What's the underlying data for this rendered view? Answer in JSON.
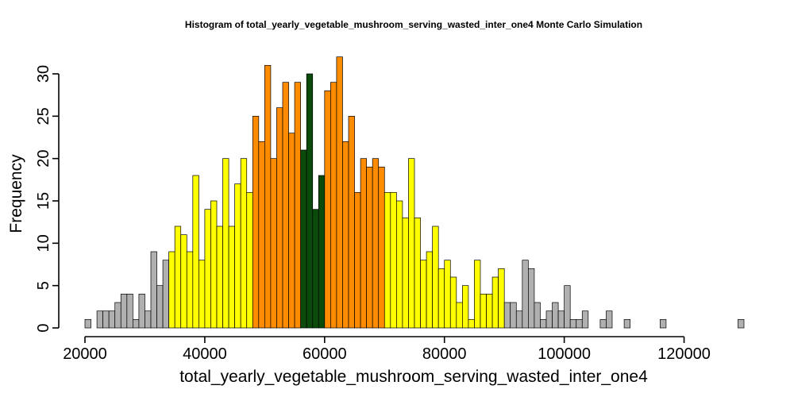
{
  "chart_data": {
    "type": "bar",
    "title": "Histogram of  total_yearly_vegetable_mushroom_serving_wasted_inter_one4  Monte Carlo Simulation",
    "xlabel": "total_yearly_vegetable_mushroom_serving_wasted_inter_one4",
    "ylabel": "Frequency",
    "xlim": [
      20000,
      130000
    ],
    "ylim": [
      0,
      32
    ],
    "bin_width": 1000,
    "x_ticks": [
      20000,
      40000,
      60000,
      80000,
      100000,
      120000
    ],
    "y_ticks": [
      0,
      5,
      10,
      15,
      20,
      25,
      30
    ],
    "grid": false,
    "legend": "none",
    "colors": {
      "tail": "#b0b0b0",
      "outer": "#ffff00",
      "inner": "#ff8c00",
      "center": "#0a4a0a",
      "outline": "#000000"
    },
    "bins": [
      {
        "x0": 20000,
        "x1": 21000,
        "count": 1,
        "group": "tail"
      },
      {
        "x0": 21000,
        "x1": 22000,
        "count": 0,
        "group": "tail"
      },
      {
        "x0": 22000,
        "x1": 23000,
        "count": 2,
        "group": "tail"
      },
      {
        "x0": 23000,
        "x1": 24000,
        "count": 2,
        "group": "tail"
      },
      {
        "x0": 24000,
        "x1": 25000,
        "count": 2,
        "group": "tail"
      },
      {
        "x0": 25000,
        "x1": 26000,
        "count": 3,
        "group": "tail"
      },
      {
        "x0": 26000,
        "x1": 27000,
        "count": 4,
        "group": "tail"
      },
      {
        "x0": 27000,
        "x1": 28000,
        "count": 4,
        "group": "tail"
      },
      {
        "x0": 28000,
        "x1": 29000,
        "count": 1,
        "group": "tail"
      },
      {
        "x0": 29000,
        "x1": 30000,
        "count": 4,
        "group": "tail"
      },
      {
        "x0": 30000,
        "x1": 31000,
        "count": 2,
        "group": "tail"
      },
      {
        "x0": 31000,
        "x1": 32000,
        "count": 9,
        "group": "tail"
      },
      {
        "x0": 32000,
        "x1": 33000,
        "count": 5,
        "group": "tail"
      },
      {
        "x0": 33000,
        "x1": 34000,
        "count": 8,
        "group": "tail"
      },
      {
        "x0": 34000,
        "x1": 35000,
        "count": 9,
        "group": "outer"
      },
      {
        "x0": 35000,
        "x1": 36000,
        "count": 12,
        "group": "outer"
      },
      {
        "x0": 36000,
        "x1": 37000,
        "count": 11,
        "group": "outer"
      },
      {
        "x0": 37000,
        "x1": 38000,
        "count": 9,
        "group": "outer"
      },
      {
        "x0": 38000,
        "x1": 39000,
        "count": 18,
        "group": "outer"
      },
      {
        "x0": 39000,
        "x1": 40000,
        "count": 8,
        "group": "outer"
      },
      {
        "x0": 40000,
        "x1": 41000,
        "count": 14,
        "group": "outer"
      },
      {
        "x0": 41000,
        "x1": 42000,
        "count": 15,
        "group": "outer"
      },
      {
        "x0": 42000,
        "x1": 43000,
        "count": 12,
        "group": "outer"
      },
      {
        "x0": 43000,
        "x1": 44000,
        "count": 20,
        "group": "outer"
      },
      {
        "x0": 44000,
        "x1": 45000,
        "count": 12,
        "group": "outer"
      },
      {
        "x0": 45000,
        "x1": 46000,
        "count": 17,
        "group": "outer"
      },
      {
        "x0": 46000,
        "x1": 47000,
        "count": 20,
        "group": "outer"
      },
      {
        "x0": 47000,
        "x1": 48000,
        "count": 16,
        "group": "outer"
      },
      {
        "x0": 48000,
        "x1": 49000,
        "count": 25,
        "group": "inner"
      },
      {
        "x0": 49000,
        "x1": 50000,
        "count": 22,
        "group": "inner"
      },
      {
        "x0": 50000,
        "x1": 51000,
        "count": 31,
        "group": "inner"
      },
      {
        "x0": 51000,
        "x1": 52000,
        "count": 20,
        "group": "inner"
      },
      {
        "x0": 52000,
        "x1": 53000,
        "count": 26,
        "group": "inner"
      },
      {
        "x0": 53000,
        "x1": 54000,
        "count": 29,
        "group": "inner"
      },
      {
        "x0": 54000,
        "x1": 55000,
        "count": 23,
        "group": "inner"
      },
      {
        "x0": 55000,
        "x1": 56000,
        "count": 29,
        "group": "inner"
      },
      {
        "x0": 56000,
        "x1": 57000,
        "count": 21,
        "group": "center"
      },
      {
        "x0": 57000,
        "x1": 58000,
        "count": 30,
        "group": "center"
      },
      {
        "x0": 58000,
        "x1": 59000,
        "count": 14,
        "group": "center"
      },
      {
        "x0": 59000,
        "x1": 60000,
        "count": 18,
        "group": "center"
      },
      {
        "x0": 60000,
        "x1": 61000,
        "count": 28,
        "group": "inner"
      },
      {
        "x0": 61000,
        "x1": 62000,
        "count": 29,
        "group": "inner"
      },
      {
        "x0": 62000,
        "x1": 63000,
        "count": 32,
        "group": "inner"
      },
      {
        "x0": 63000,
        "x1": 64000,
        "count": 22,
        "group": "inner"
      },
      {
        "x0": 64000,
        "x1": 65000,
        "count": 25,
        "group": "inner"
      },
      {
        "x0": 65000,
        "x1": 66000,
        "count": 16,
        "group": "inner"
      },
      {
        "x0": 66000,
        "x1": 67000,
        "count": 20,
        "group": "inner"
      },
      {
        "x0": 67000,
        "x1": 68000,
        "count": 19,
        "group": "inner"
      },
      {
        "x0": 68000,
        "x1": 69000,
        "count": 20,
        "group": "inner"
      },
      {
        "x0": 69000,
        "x1": 70000,
        "count": 19,
        "group": "inner"
      },
      {
        "x0": 70000,
        "x1": 71000,
        "count": 16,
        "group": "outer"
      },
      {
        "x0": 71000,
        "x1": 72000,
        "count": 16,
        "group": "outer"
      },
      {
        "x0": 72000,
        "x1": 73000,
        "count": 15,
        "group": "outer"
      },
      {
        "x0": 73000,
        "x1": 74000,
        "count": 13,
        "group": "outer"
      },
      {
        "x0": 74000,
        "x1": 75000,
        "count": 20,
        "group": "outer"
      },
      {
        "x0": 75000,
        "x1": 76000,
        "count": 13,
        "group": "outer"
      },
      {
        "x0": 76000,
        "x1": 77000,
        "count": 8,
        "group": "outer"
      },
      {
        "x0": 77000,
        "x1": 78000,
        "count": 9,
        "group": "outer"
      },
      {
        "x0": 78000,
        "x1": 79000,
        "count": 12,
        "group": "outer"
      },
      {
        "x0": 79000,
        "x1": 80000,
        "count": 7,
        "group": "outer"
      },
      {
        "x0": 80000,
        "x1": 81000,
        "count": 8,
        "group": "outer"
      },
      {
        "x0": 81000,
        "x1": 82000,
        "count": 6,
        "group": "outer"
      },
      {
        "x0": 82000,
        "x1": 83000,
        "count": 3,
        "group": "outer"
      },
      {
        "x0": 83000,
        "x1": 84000,
        "count": 5,
        "group": "outer"
      },
      {
        "x0": 84000,
        "x1": 85000,
        "count": 1,
        "group": "outer"
      },
      {
        "x0": 85000,
        "x1": 86000,
        "count": 8,
        "group": "outer"
      },
      {
        "x0": 86000,
        "x1": 87000,
        "count": 4,
        "group": "outer"
      },
      {
        "x0": 87000,
        "x1": 88000,
        "count": 4,
        "group": "outer"
      },
      {
        "x0": 88000,
        "x1": 89000,
        "count": 6,
        "group": "outer"
      },
      {
        "x0": 89000,
        "x1": 90000,
        "count": 7,
        "group": "outer"
      },
      {
        "x0": 90000,
        "x1": 91000,
        "count": 3,
        "group": "tail"
      },
      {
        "x0": 91000,
        "x1": 92000,
        "count": 3,
        "group": "tail"
      },
      {
        "x0": 92000,
        "x1": 93000,
        "count": 2,
        "group": "tail"
      },
      {
        "x0": 93000,
        "x1": 94000,
        "count": 8,
        "group": "tail"
      },
      {
        "x0": 94000,
        "x1": 95000,
        "count": 7,
        "group": "tail"
      },
      {
        "x0": 95000,
        "x1": 96000,
        "count": 3,
        "group": "tail"
      },
      {
        "x0": 96000,
        "x1": 97000,
        "count": 1,
        "group": "tail"
      },
      {
        "x0": 97000,
        "x1": 98000,
        "count": 2,
        "group": "tail"
      },
      {
        "x0": 98000,
        "x1": 99000,
        "count": 3,
        "group": "tail"
      },
      {
        "x0": 99000,
        "x1": 100000,
        "count": 2,
        "group": "tail"
      },
      {
        "x0": 100000,
        "x1": 101000,
        "count": 5,
        "group": "tail"
      },
      {
        "x0": 101000,
        "x1": 102000,
        "count": 1,
        "group": "tail"
      },
      {
        "x0": 102000,
        "x1": 103000,
        "count": 1,
        "group": "tail"
      },
      {
        "x0": 103000,
        "x1": 104000,
        "count": 2,
        "group": "tail"
      },
      {
        "x0": 104000,
        "x1": 105000,
        "count": 0,
        "group": "tail"
      },
      {
        "x0": 105000,
        "x1": 106000,
        "count": 0,
        "group": "tail"
      },
      {
        "x0": 106000,
        "x1": 107000,
        "count": 1,
        "group": "tail"
      },
      {
        "x0": 107000,
        "x1": 108000,
        "count": 2,
        "group": "tail"
      },
      {
        "x0": 108000,
        "x1": 109000,
        "count": 0,
        "group": "tail"
      },
      {
        "x0": 109000,
        "x1": 110000,
        "count": 0,
        "group": "tail"
      },
      {
        "x0": 110000,
        "x1": 111000,
        "count": 1,
        "group": "tail"
      },
      {
        "x0": 111000,
        "x1": 112000,
        "count": 0,
        "group": "tail"
      },
      {
        "x0": 112000,
        "x1": 113000,
        "count": 0,
        "group": "tail"
      },
      {
        "x0": 113000,
        "x1": 114000,
        "count": 0,
        "group": "tail"
      },
      {
        "x0": 114000,
        "x1": 115000,
        "count": 0,
        "group": "tail"
      },
      {
        "x0": 115000,
        "x1": 116000,
        "count": 0,
        "group": "tail"
      },
      {
        "x0": 116000,
        "x1": 117000,
        "count": 1,
        "group": "tail"
      },
      {
        "x0": 117000,
        "x1": 118000,
        "count": 0,
        "group": "tail"
      },
      {
        "x0": 118000,
        "x1": 119000,
        "count": 0,
        "group": "tail"
      },
      {
        "x0": 119000,
        "x1": 120000,
        "count": 0,
        "group": "tail"
      },
      {
        "x0": 120000,
        "x1": 121000,
        "count": 0,
        "group": "tail"
      },
      {
        "x0": 121000,
        "x1": 122000,
        "count": 0,
        "group": "tail"
      },
      {
        "x0": 122000,
        "x1": 123000,
        "count": 0,
        "group": "tail"
      },
      {
        "x0": 123000,
        "x1": 124000,
        "count": 0,
        "group": "tail"
      },
      {
        "x0": 124000,
        "x1": 125000,
        "count": 0,
        "group": "tail"
      },
      {
        "x0": 125000,
        "x1": 126000,
        "count": 0,
        "group": "tail"
      },
      {
        "x0": 126000,
        "x1": 127000,
        "count": 0,
        "group": "tail"
      },
      {
        "x0": 127000,
        "x1": 128000,
        "count": 0,
        "group": "tail"
      },
      {
        "x0": 128000,
        "x1": 129000,
        "count": 0,
        "group": "tail"
      },
      {
        "x0": 129000,
        "x1": 130000,
        "count": 1,
        "group": "tail"
      }
    ]
  }
}
